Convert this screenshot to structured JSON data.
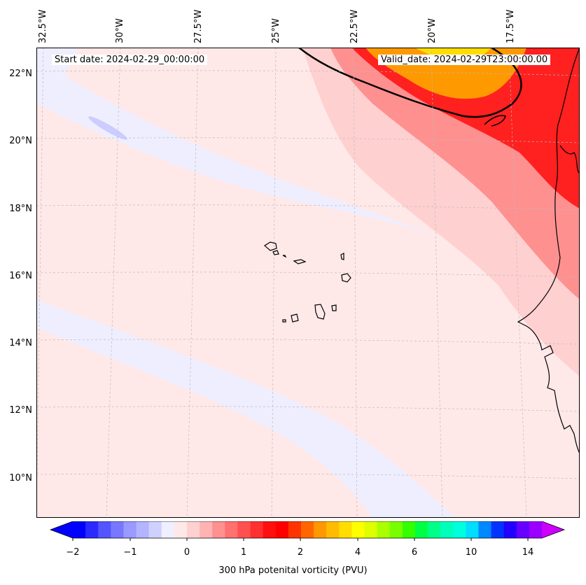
{
  "map": {
    "start_date": "Start date: 2024-02-29_00:00:00",
    "valid_date": "Valid_date: 2024-02-29T23:00:00.00",
    "lon_labels": [
      "32.5°W",
      "30°W",
      "27.5°W",
      "25°W",
      "22.5°W",
      "20°W",
      "17.5°W"
    ],
    "lat_labels": [
      "22°N",
      "20°N",
      "18°N",
      "16°N",
      "14°N",
      "12°N",
      "10°N"
    ]
  },
  "colorbar": {
    "title": "300 hPa potenital vorticity (PVU)",
    "tick_labels": [
      "−2",
      "−1",
      "0",
      "1",
      "2",
      "4",
      "6",
      "10",
      "14"
    ],
    "colors": [
      "#0000ff",
      "#2a2aff",
      "#5555ff",
      "#7777ff",
      "#9999ff",
      "#b3b3ff",
      "#d0d0ff",
      "#efefff",
      "#ffe8e8",
      "#ffd0d0",
      "#ffb3b3",
      "#ff9090",
      "#ff7070",
      "#ff5050",
      "#ff3030",
      "#ff1010",
      "#ff0000",
      "#ff3300",
      "#ff6600",
      "#ff9900",
      "#ffbb00",
      "#ffdd00",
      "#ffff00",
      "#ddff00",
      "#aaff00",
      "#77ff00",
      "#33ff00",
      "#00ff44",
      "#00ff88",
      "#00ffbb",
      "#00ffdd",
      "#00ddff",
      "#0088ff",
      "#0033ff",
      "#2200ff",
      "#6600ff",
      "#9900ff"
    ],
    "extend_low": "#0000ff",
    "extend_high": "#cc00ff"
  },
  "palette": {
    "background_field": "#eeeeff",
    "light_pink": "#ffe8e8",
    "pink": "#ffd0d0",
    "salmon": "#ff9090",
    "red": "#ff2020",
    "orange": "#ff9900",
    "yellow": "#ffdd00"
  }
}
